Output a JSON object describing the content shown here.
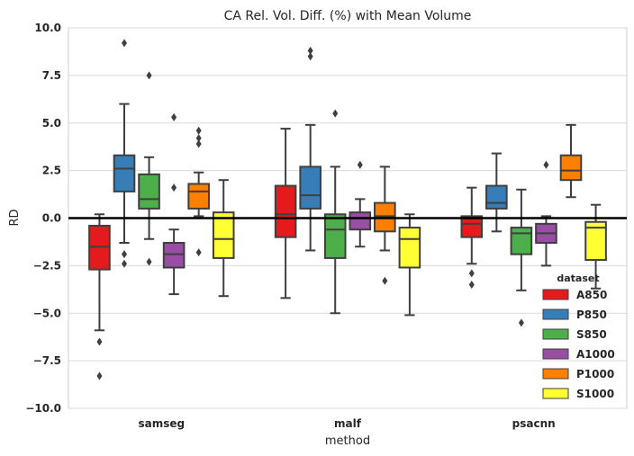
{
  "chart_data": {
    "type": "box",
    "title": "CA Rel. Vol. Diff. (%) with Mean Volume",
    "xlabel": "method",
    "ylabel": "RD",
    "ylim": [
      -10,
      10
    ],
    "yticks": [
      10.0,
      7.5,
      5.0,
      2.5,
      0.0,
      -2.5,
      -5.0,
      -7.5,
      -10.0
    ],
    "ytick_labels": [
      "10.0",
      "7.5",
      "5.0",
      "2.5",
      "0.0",
      "−2.5",
      "−5.0",
      "−7.5",
      "−10.0"
    ],
    "grid": true,
    "reference_line": 0,
    "categories": [
      "samseg",
      "malf",
      "psacnn"
    ],
    "legend": {
      "title": "dataset",
      "position": "lower-right"
    },
    "series": [
      {
        "name": "A850",
        "color": "#e41a1c",
        "boxes": [
          {
            "whislo": -5.9,
            "q1": -2.7,
            "med": -1.5,
            "q3": -0.4,
            "whishi": 0.2,
            "fliers": [
              -6.5,
              -8.3
            ]
          },
          {
            "whislo": -4.2,
            "q1": -1.0,
            "med": 0.2,
            "q3": 1.7,
            "whishi": 4.7,
            "fliers": []
          },
          {
            "whislo": -2.4,
            "q1": -1.0,
            "med": -0.3,
            "q3": 0.1,
            "whishi": 1.6,
            "fliers": [
              -2.9,
              -3.5
            ]
          }
        ]
      },
      {
        "name": "P850",
        "color": "#377eb8",
        "boxes": [
          {
            "whislo": -1.3,
            "q1": 1.4,
            "med": 2.6,
            "q3": 3.3,
            "whishi": 6.0,
            "fliers": [
              9.2,
              -1.9,
              -2.4
            ]
          },
          {
            "whislo": -1.7,
            "q1": 0.5,
            "med": 1.2,
            "q3": 2.7,
            "whishi": 4.9,
            "fliers": [
              8.5,
              8.8
            ]
          },
          {
            "whislo": -0.7,
            "q1": 0.5,
            "med": 0.8,
            "q3": 1.7,
            "whishi": 3.4,
            "fliers": []
          }
        ]
      },
      {
        "name": "S850",
        "color": "#4daf4a",
        "boxes": [
          {
            "whislo": -1.1,
            "q1": 0.5,
            "med": 1.0,
            "q3": 2.3,
            "whishi": 3.2,
            "fliers": [
              7.5,
              -2.3
            ]
          },
          {
            "whislo": -5.0,
            "q1": -2.1,
            "med": -0.6,
            "q3": 0.2,
            "whishi": 2.7,
            "fliers": [
              5.5
            ]
          },
          {
            "whislo": -3.8,
            "q1": -1.9,
            "med": -0.8,
            "q3": -0.5,
            "whishi": 1.5,
            "fliers": [
              -5.5
            ]
          }
        ]
      },
      {
        "name": "A1000",
        "color": "#984ea3",
        "boxes": [
          {
            "whislo": -4.0,
            "q1": -2.6,
            "med": -1.9,
            "q3": -1.3,
            "whishi": -0.6,
            "fliers": [
              5.3,
              1.6
            ]
          },
          {
            "whislo": -1.5,
            "q1": -0.6,
            "med": 0.0,
            "q3": 0.3,
            "whishi": 1.0,
            "fliers": [
              2.8
            ]
          },
          {
            "whislo": -2.5,
            "q1": -1.3,
            "med": -0.8,
            "q3": -0.3,
            "whishi": 0.1,
            "fliers": [
              2.8
            ]
          }
        ]
      },
      {
        "name": "P1000",
        "color": "#ff7f00",
        "boxes": [
          {
            "whislo": 0.1,
            "q1": 0.5,
            "med": 1.4,
            "q3": 1.8,
            "whishi": 2.4,
            "fliers": [
              4.6,
              4.2,
              3.9,
              -1.8
            ]
          },
          {
            "whislo": -1.7,
            "q1": -0.7,
            "med": 0.1,
            "q3": 0.8,
            "whishi": 2.7,
            "fliers": [
              -3.3
            ]
          },
          {
            "whislo": 1.1,
            "q1": 2.0,
            "med": 2.5,
            "q3": 3.3,
            "whishi": 4.9,
            "fliers": []
          }
        ]
      },
      {
        "name": "S1000",
        "color": "#ffff33",
        "boxes": [
          {
            "whislo": -4.1,
            "q1": -2.1,
            "med": -1.1,
            "q3": 0.3,
            "whishi": 2.0,
            "fliers": []
          },
          {
            "whislo": -5.1,
            "q1": -2.6,
            "med": -1.1,
            "q3": -0.5,
            "whishi": 0.2,
            "fliers": []
          },
          {
            "whislo": -3.7,
            "q1": -2.2,
            "med": -0.5,
            "q3": -0.2,
            "whishi": 0.7,
            "fliers": []
          }
        ]
      }
    ]
  }
}
